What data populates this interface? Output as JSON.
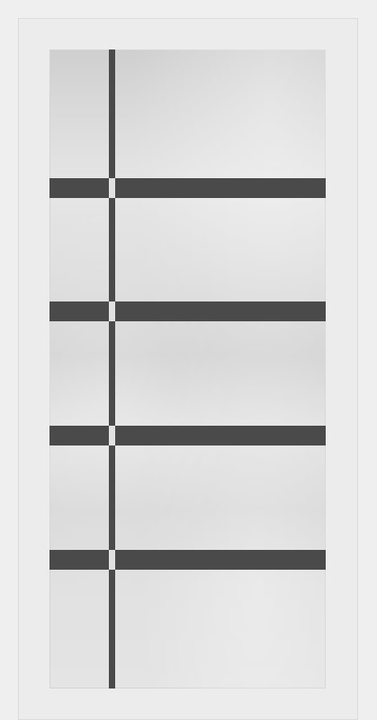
{
  "product": {
    "kind": "interior door",
    "style": "frosted glass panel with dark grid bars"
  },
  "colors": {
    "frame": "#ececec",
    "glass": "#dcdcdc",
    "bars": "#4a4a4a"
  },
  "grid": {
    "vertical_bars": 1,
    "horizontal_bars": 4
  }
}
